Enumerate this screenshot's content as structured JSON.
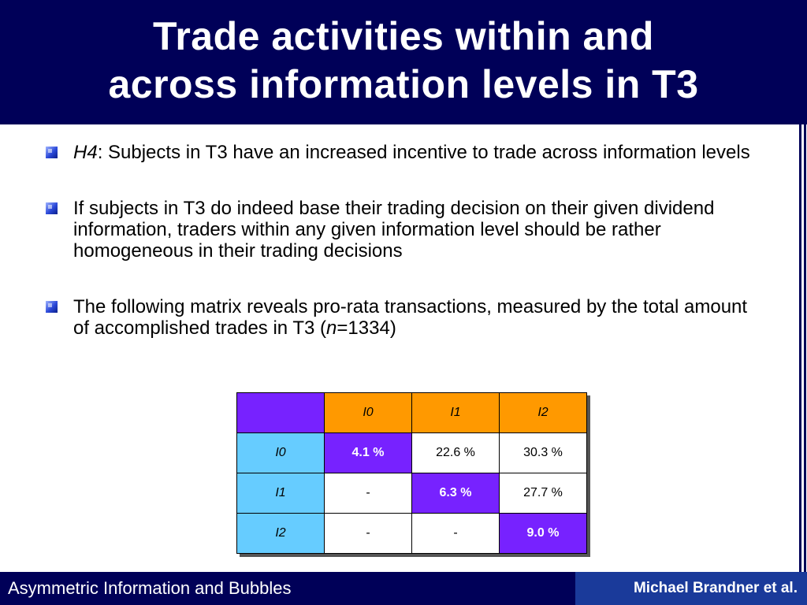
{
  "slide": {
    "title_line1": "Trade activities within and",
    "title_line2": "across information levels in T3"
  },
  "bullets": [
    {
      "em": "H4",
      "text": ": Subjects in T3 have an increased incentive to trade across information levels"
    },
    {
      "text": "If subjects in T3 do indeed base their trading decision on their given dividend information, traders within any given information level should be rather homogeneous in their trading decisions"
    },
    {
      "text_before": "The following matrix reveals pro-rata transactions, measured by the total amount of accomplished trades in T3 (",
      "em": "n",
      "text_after": "=1334)"
    }
  ],
  "matrix": {
    "col_headers": [
      "I0",
      "I1",
      "I2"
    ],
    "rows": [
      {
        "header": "I0",
        "cells": [
          "4.1 %",
          "22.6 %",
          "30.3 %"
        ]
      },
      {
        "header": "I1",
        "cells": [
          "-",
          "6.3 %",
          "27.7 %"
        ]
      },
      {
        "header": "I2",
        "cells": [
          "-",
          "-",
          "9.0 %"
        ]
      }
    ]
  },
  "footer": {
    "left": "Asymmetric Information and Bubbles",
    "right": "Michael Brandner et al."
  },
  "colors": {
    "title_bg": "#000058",
    "corner_and_diagonal": "#7722ff",
    "column_header": "#ff9900",
    "row_header": "#66ccff",
    "footer_right_bg": "#1a3a9a"
  }
}
